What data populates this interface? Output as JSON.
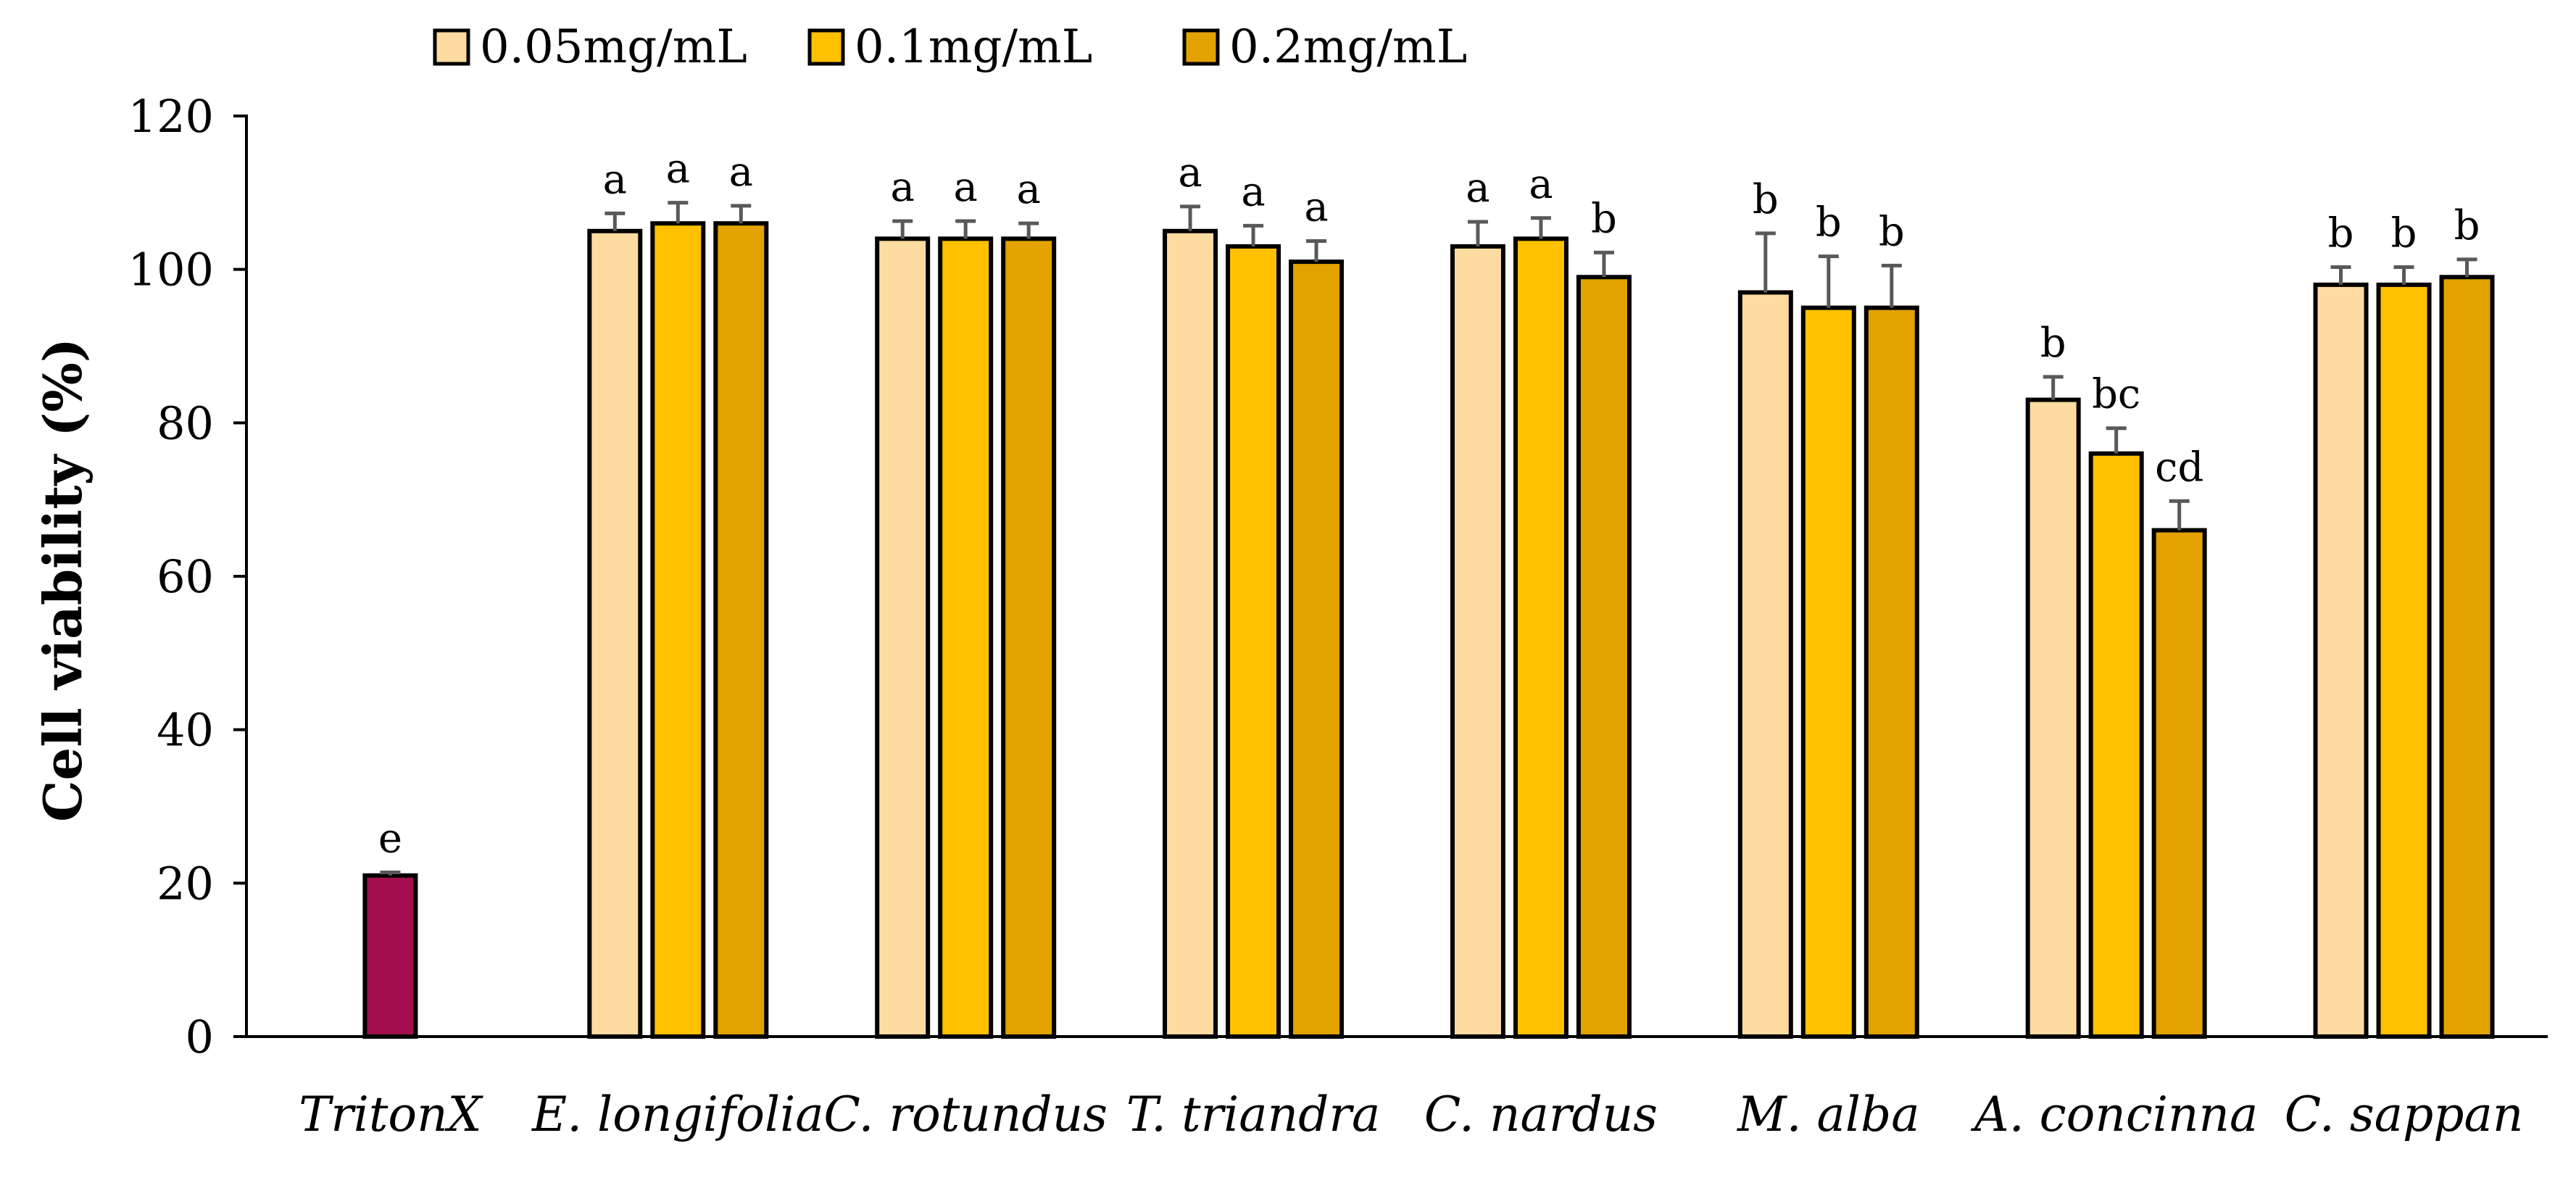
{
  "chart_data": {
    "type": "bar",
    "title": "",
    "xlabel": "",
    "ylabel": "Cell viability (%)",
    "ylim": [
      0,
      120
    ],
    "yticks": [
      0,
      20,
      40,
      60,
      80,
      100,
      120
    ],
    "grid": false,
    "legend_position": "top",
    "categories": [
      "TritonX",
      "E. longifolia",
      "C. rotundus",
      "T. triandra",
      "C. nardus",
      "M. alba",
      "A. concinna",
      "C. sappan"
    ],
    "series": [
      {
        "name": "0.05mg/mL",
        "color": "#FDDBA1",
        "values": [
          null,
          105,
          104,
          105,
          103,
          97,
          83,
          98
        ],
        "errors": [
          null,
          2.3,
          2.3,
          3.2,
          3.2,
          7.7,
          3.0,
          2.3
        ],
        "labels": [
          null,
          "a",
          "a",
          "a",
          "a",
          "b",
          "b",
          "b"
        ]
      },
      {
        "name": "0.1mg/mL",
        "color": "#FFC000",
        "values": [
          null,
          106,
          104,
          103,
          104,
          95,
          76,
          98
        ],
        "errors": [
          null,
          2.7,
          2.3,
          2.7,
          2.7,
          6.7,
          3.3,
          2.3
        ],
        "labels": [
          null,
          "a",
          "a",
          "a",
          "a",
          "b",
          "bc",
          "b"
        ]
      },
      {
        "name": "0.2mg/mL",
        "color": "#E3A200",
        "values": [
          null,
          106,
          104,
          101,
          99,
          95,
          66,
          99
        ],
        "errors": [
          null,
          2.3,
          2.0,
          2.7,
          3.2,
          5.5,
          3.8,
          2.3
        ],
        "labels": [
          null,
          "a",
          "a",
          "a",
          "b",
          "b",
          "cd",
          "b"
        ]
      }
    ],
    "control": {
      "category": "TritonX",
      "value": 21,
      "error": 0.4,
      "label": "e",
      "color": "#A30F4E"
    }
  }
}
